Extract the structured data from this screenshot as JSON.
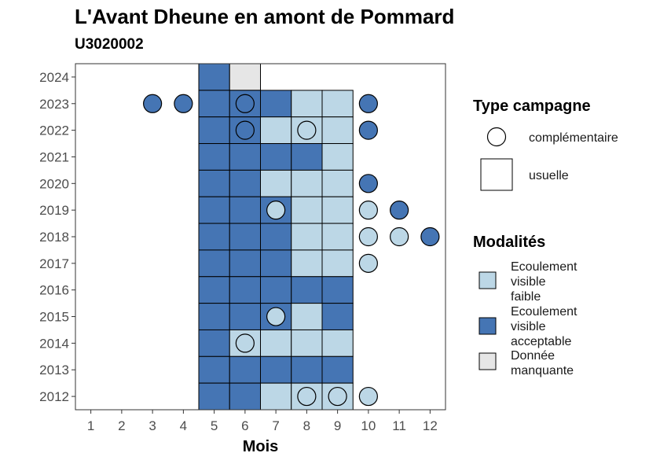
{
  "chart_data": {
    "type": "heatmap",
    "title": "L'Avant Dheune en amont de Pommard",
    "subtitle": "U3020002",
    "xlabel": "Mois",
    "ylabel": "",
    "x_ticks": [
      1,
      2,
      3,
      4,
      5,
      6,
      7,
      8,
      9,
      10,
      11,
      12
    ],
    "y_ticks": [
      2024,
      2023,
      2022,
      2021,
      2020,
      2019,
      2018,
      2017,
      2016,
      2015,
      2014,
      2013,
      2012
    ],
    "xlim": [
      0.5,
      12.5
    ],
    "ylim": [
      2011.5,
      2024.5
    ],
    "modalities": [
      {
        "key": "faible",
        "label": "Ecoulement visible faible",
        "lines": [
          "Ecoulement",
          "visible",
          "faible"
        ],
        "color": "#bcd7e6"
      },
      {
        "key": "acceptable",
        "label": "Ecoulement visible acceptable",
        "lines": [
          "Ecoulement",
          "visible",
          "acceptable"
        ],
        "color": "#4575b4"
      },
      {
        "key": "manquante",
        "label": "Donnée manquante",
        "lines": [
          "Donnée",
          "manquante"
        ],
        "color": "#e6e6e6"
      }
    ],
    "campaign_types": [
      {
        "key": "complementaire",
        "label": "complémentaire",
        "shape": "circle"
      },
      {
        "key": "usuelle",
        "label": "usuelle",
        "shape": "square"
      }
    ],
    "legend": {
      "type_title": "Type campagne",
      "modalities_title": "Modalités",
      "position": "right"
    },
    "usuelle": [
      {
        "year": 2024,
        "month": 5,
        "value": "acceptable"
      },
      {
        "year": 2024,
        "month": 6,
        "value": "manquante"
      },
      {
        "year": 2023,
        "month": 5,
        "value": "acceptable"
      },
      {
        "year": 2023,
        "month": 6,
        "value": "acceptable"
      },
      {
        "year": 2023,
        "month": 7,
        "value": "acceptable"
      },
      {
        "year": 2023,
        "month": 8,
        "value": "faible"
      },
      {
        "year": 2023,
        "month": 9,
        "value": "faible"
      },
      {
        "year": 2022,
        "month": 5,
        "value": "acceptable"
      },
      {
        "year": 2022,
        "month": 6,
        "value": "acceptable"
      },
      {
        "year": 2022,
        "month": 7,
        "value": "faible"
      },
      {
        "year": 2022,
        "month": 8,
        "value": "faible"
      },
      {
        "year": 2022,
        "month": 9,
        "value": "faible"
      },
      {
        "year": 2021,
        "month": 5,
        "value": "acceptable"
      },
      {
        "year": 2021,
        "month": 6,
        "value": "acceptable"
      },
      {
        "year": 2021,
        "month": 7,
        "value": "acceptable"
      },
      {
        "year": 2021,
        "month": 8,
        "value": "acceptable"
      },
      {
        "year": 2021,
        "month": 9,
        "value": "faible"
      },
      {
        "year": 2020,
        "month": 5,
        "value": "acceptable"
      },
      {
        "year": 2020,
        "month": 6,
        "value": "acceptable"
      },
      {
        "year": 2020,
        "month": 7,
        "value": "faible"
      },
      {
        "year": 2020,
        "month": 8,
        "value": "faible"
      },
      {
        "year": 2020,
        "month": 9,
        "value": "faible"
      },
      {
        "year": 2019,
        "month": 5,
        "value": "acceptable"
      },
      {
        "year": 2019,
        "month": 6,
        "value": "acceptable"
      },
      {
        "year": 2019,
        "month": 7,
        "value": "acceptable"
      },
      {
        "year": 2019,
        "month": 8,
        "value": "faible"
      },
      {
        "year": 2019,
        "month": 9,
        "value": "faible"
      },
      {
        "year": 2018,
        "month": 5,
        "value": "acceptable"
      },
      {
        "year": 2018,
        "month": 6,
        "value": "acceptable"
      },
      {
        "year": 2018,
        "month": 7,
        "value": "acceptable"
      },
      {
        "year": 2018,
        "month": 8,
        "value": "faible"
      },
      {
        "year": 2018,
        "month": 9,
        "value": "faible"
      },
      {
        "year": 2017,
        "month": 5,
        "value": "acceptable"
      },
      {
        "year": 2017,
        "month": 6,
        "value": "acceptable"
      },
      {
        "year": 2017,
        "month": 7,
        "value": "acceptable"
      },
      {
        "year": 2017,
        "month": 8,
        "value": "faible"
      },
      {
        "year": 2017,
        "month": 9,
        "value": "faible"
      },
      {
        "year": 2016,
        "month": 5,
        "value": "acceptable"
      },
      {
        "year": 2016,
        "month": 6,
        "value": "acceptable"
      },
      {
        "year": 2016,
        "month": 7,
        "value": "acceptable"
      },
      {
        "year": 2016,
        "month": 8,
        "value": "acceptable"
      },
      {
        "year": 2016,
        "month": 9,
        "value": "acceptable"
      },
      {
        "year": 2015,
        "month": 5,
        "value": "acceptable"
      },
      {
        "year": 2015,
        "month": 6,
        "value": "acceptable"
      },
      {
        "year": 2015,
        "month": 7,
        "value": "acceptable"
      },
      {
        "year": 2015,
        "month": 8,
        "value": "faible"
      },
      {
        "year": 2015,
        "month": 9,
        "value": "acceptable"
      },
      {
        "year": 2014,
        "month": 5,
        "value": "acceptable"
      },
      {
        "year": 2014,
        "month": 6,
        "value": "faible"
      },
      {
        "year": 2014,
        "month": 7,
        "value": "faible"
      },
      {
        "year": 2014,
        "month": 8,
        "value": "faible"
      },
      {
        "year": 2014,
        "month": 9,
        "value": "faible"
      },
      {
        "year": 2013,
        "month": 5,
        "value": "acceptable"
      },
      {
        "year": 2013,
        "month": 6,
        "value": "acceptable"
      },
      {
        "year": 2013,
        "month": 7,
        "value": "acceptable"
      },
      {
        "year": 2013,
        "month": 8,
        "value": "acceptable"
      },
      {
        "year": 2013,
        "month": 9,
        "value": "acceptable"
      },
      {
        "year": 2012,
        "month": 5,
        "value": "acceptable"
      },
      {
        "year": 2012,
        "month": 6,
        "value": "acceptable"
      },
      {
        "year": 2012,
        "month": 7,
        "value": "faible"
      },
      {
        "year": 2012,
        "month": 8,
        "value": "faible"
      },
      {
        "year": 2012,
        "month": 9,
        "value": "faible"
      }
    ],
    "complementaire": [
      {
        "year": 2023,
        "month": 3,
        "value": "acceptable"
      },
      {
        "year": 2023,
        "month": 4,
        "value": "acceptable"
      },
      {
        "year": 2023,
        "month": 6,
        "value": "acceptable"
      },
      {
        "year": 2023,
        "month": 10,
        "value": "acceptable"
      },
      {
        "year": 2022,
        "month": 6,
        "value": "acceptable"
      },
      {
        "year": 2022,
        "month": 8,
        "value": "faible"
      },
      {
        "year": 2022,
        "month": 10,
        "value": "acceptable"
      },
      {
        "year": 2020,
        "month": 10,
        "value": "acceptable"
      },
      {
        "year": 2019,
        "month": 7,
        "value": "faible"
      },
      {
        "year": 2019,
        "month": 10,
        "value": "faible"
      },
      {
        "year": 2019,
        "month": 11,
        "value": "acceptable"
      },
      {
        "year": 2018,
        "month": 10,
        "value": "faible"
      },
      {
        "year": 2018,
        "month": 11,
        "value": "faible"
      },
      {
        "year": 2018,
        "month": 12,
        "value": "acceptable"
      },
      {
        "year": 2017,
        "month": 10,
        "value": "faible"
      },
      {
        "year": 2015,
        "month": 7,
        "value": "faible"
      },
      {
        "year": 2014,
        "month": 6,
        "value": "faible"
      },
      {
        "year": 2012,
        "month": 8,
        "value": "faible"
      },
      {
        "year": 2012,
        "month": 9,
        "value": "faible"
      },
      {
        "year": 2012,
        "month": 10,
        "value": "faible"
      }
    ]
  }
}
